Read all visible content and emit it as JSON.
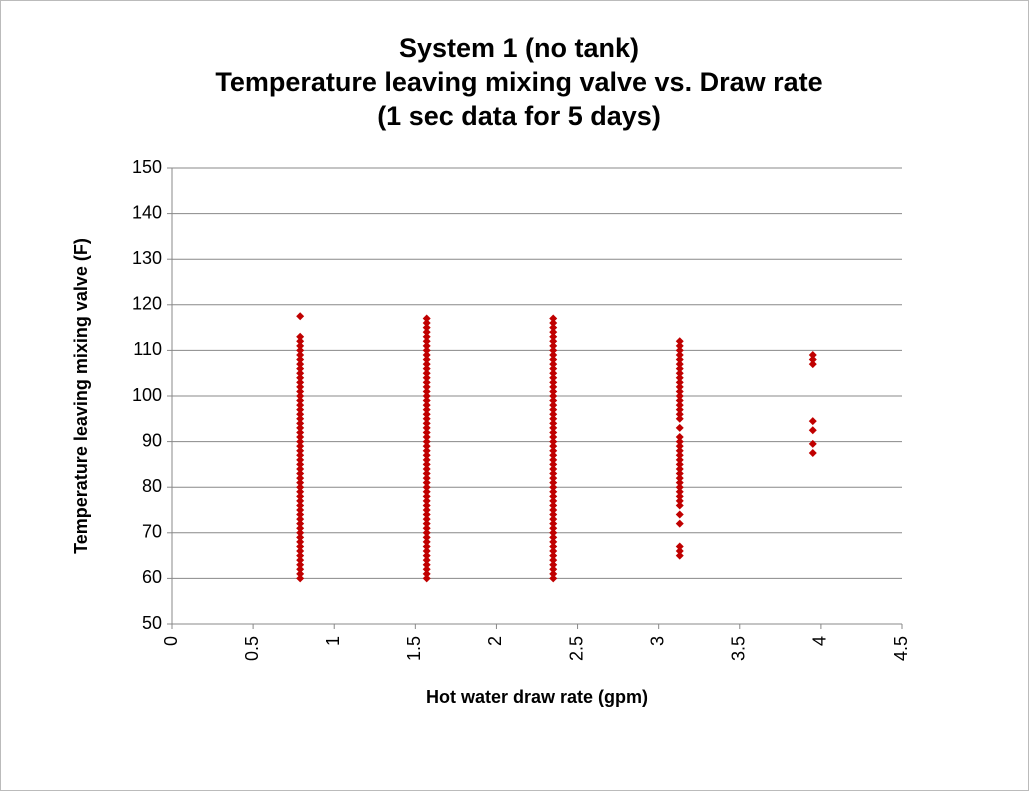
{
  "chart_data": {
    "type": "scatter",
    "title": [
      "System 1 (no tank)",
      "Temperature leaving mixing valve vs. Draw rate",
      "(1 sec data for 5 days)"
    ],
    "x_label": "Hot water draw rate (gpm)",
    "y_label": "Temperature leaving mixing valve (F)",
    "color": "#c00000",
    "xlim": [
      0,
      4.5
    ],
    "xticks": [
      0,
      0.5,
      1,
      1.5,
      2,
      2.5,
      3,
      3.5,
      4,
      4.5
    ],
    "ylim": [
      50,
      150
    ],
    "yticks": [
      50,
      60,
      70,
      80,
      90,
      100,
      110,
      120,
      130,
      140,
      150
    ],
    "grid": true,
    "x": [
      0.79,
      0.79,
      0.79,
      0.79,
      0.79,
      0.79,
      0.79,
      0.79,
      0.79,
      0.79,
      0.79,
      0.79,
      0.79,
      0.79,
      0.79,
      0.79,
      0.79,
      0.79,
      0.79,
      0.79,
      0.79,
      0.79,
      0.79,
      0.79,
      0.79,
      0.79,
      0.79,
      0.79,
      0.79,
      0.79,
      0.79,
      0.79,
      0.79,
      0.79,
      0.79,
      0.79,
      0.79,
      0.79,
      0.79,
      0.79,
      0.79,
      0.79,
      0.79,
      0.79,
      0.79,
      0.79,
      0.79,
      0.79,
      0.79,
      0.79,
      0.79,
      0.79,
      0.79,
      0.79,
      0.79,
      1.57,
      1.57,
      1.57,
      1.57,
      1.57,
      1.57,
      1.57,
      1.57,
      1.57,
      1.57,
      1.57,
      1.57,
      1.57,
      1.57,
      1.57,
      1.57,
      1.57,
      1.57,
      1.57,
      1.57,
      1.57,
      1.57,
      1.57,
      1.57,
      1.57,
      1.57,
      1.57,
      1.57,
      1.57,
      1.57,
      1.57,
      1.57,
      1.57,
      1.57,
      1.57,
      1.57,
      1.57,
      1.57,
      1.57,
      1.57,
      1.57,
      1.57,
      1.57,
      1.57,
      1.57,
      1.57,
      1.57,
      1.57,
      1.57,
      1.57,
      1.57,
      1.57,
      1.57,
      1.57,
      1.57,
      1.57,
      1.57,
      1.57,
      2.35,
      2.35,
      2.35,
      2.35,
      2.35,
      2.35,
      2.35,
      2.35,
      2.35,
      2.35,
      2.35,
      2.35,
      2.35,
      2.35,
      2.35,
      2.35,
      2.35,
      2.35,
      2.35,
      2.35,
      2.35,
      2.35,
      2.35,
      2.35,
      2.35,
      2.35,
      2.35,
      2.35,
      2.35,
      2.35,
      2.35,
      2.35,
      2.35,
      2.35,
      2.35,
      2.35,
      2.35,
      2.35,
      2.35,
      2.35,
      2.35,
      2.35,
      2.35,
      2.35,
      2.35,
      2.35,
      2.35,
      2.35,
      2.35,
      2.35,
      2.35,
      2.35,
      2.35,
      2.35,
      2.35,
      2.35,
      2.35,
      2.35,
      3.13,
      3.13,
      3.13,
      3.13,
      3.13,
      3.13,
      3.13,
      3.13,
      3.13,
      3.13,
      3.13,
      3.13,
      3.13,
      3.13,
      3.13,
      3.13,
      3.13,
      3.13,
      3.13,
      3.13,
      3.13,
      3.13,
      3.13,
      3.13,
      3.13,
      3.13,
      3.13,
      3.13,
      3.13,
      3.13,
      3.13,
      3.13,
      3.13,
      3.13,
      3.13,
      3.13,
      3.13,
      3.13,
      3.13,
      3.13,
      3.95,
      3.95,
      3.95,
      3.95,
      3.95,
      3.95,
      3.95
    ],
    "values": [
      60,
      61,
      62,
      63,
      64,
      65,
      66,
      67,
      68,
      69,
      70,
      71,
      72,
      73,
      74,
      75,
      76,
      77,
      78,
      79,
      80,
      81,
      82,
      83,
      84,
      85,
      86,
      87,
      88,
      89,
      90,
      91,
      92,
      93,
      94,
      95,
      96,
      97,
      98,
      99,
      100,
      101,
      102,
      103,
      104,
      105,
      106,
      107,
      108,
      109,
      110,
      111,
      112,
      113,
      117.5,
      60,
      61,
      62,
      63,
      64,
      65,
      66,
      67,
      68,
      69,
      70,
      71,
      72,
      73,
      74,
      75,
      76,
      77,
      78,
      79,
      80,
      81,
      82,
      83,
      84,
      85,
      86,
      87,
      88,
      89,
      90,
      91,
      92,
      93,
      94,
      95,
      96,
      97,
      98,
      99,
      100,
      101,
      102,
      103,
      104,
      105,
      106,
      107,
      108,
      109,
      110,
      111,
      112,
      113,
      114,
      115,
      116,
      117,
      60,
      61,
      62,
      63,
      64,
      65,
      66,
      67,
      68,
      69,
      70,
      71,
      72,
      73,
      74,
      75,
      76,
      77,
      78,
      79,
      80,
      81,
      82,
      83,
      84,
      85,
      86,
      87,
      88,
      89,
      90,
      91,
      92,
      93,
      94,
      95,
      96,
      97,
      98,
      99,
      100,
      101,
      102,
      103,
      104,
      105,
      106,
      107,
      108,
      109,
      110,
      111,
      112,
      113,
      114,
      115,
      116,
      117,
      65,
      66,
      67,
      72,
      74,
      76,
      77,
      78,
      79,
      80,
      81,
      82,
      83,
      84,
      85,
      86,
      87,
      88,
      89,
      90,
      91,
      93,
      95,
      96,
      97,
      98,
      99,
      100,
      101,
      102,
      103,
      104,
      105,
      106,
      107,
      108,
      109,
      110,
      111,
      112,
      87.5,
      89.5,
      92.5,
      94.5,
      107,
      108,
      109
    ]
  }
}
